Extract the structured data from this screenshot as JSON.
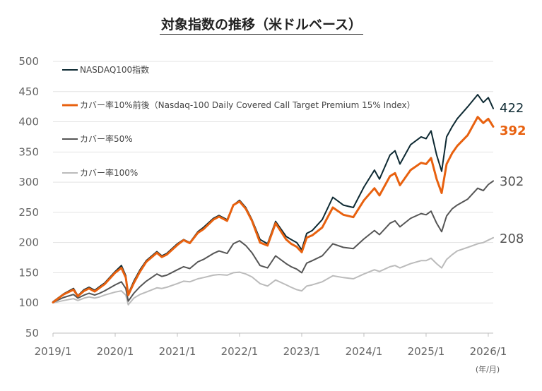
{
  "chart_data": {
    "type": "line",
    "title": "対象指数の推移（米ドルベース）",
    "unit_label": "(年/月)",
    "ylim": [
      50,
      500
    ],
    "yticks": [
      50,
      100,
      150,
      200,
      250,
      300,
      350,
      400,
      450,
      500
    ],
    "xlim": [
      2019.0,
      2026.08
    ],
    "xticks": [
      {
        "value": 2019,
        "label": "2019/1"
      },
      {
        "value": 2020,
        "label": "2020/1"
      },
      {
        "value": 2021,
        "label": "2021/1"
      },
      {
        "value": 2022,
        "label": "2022/1"
      },
      {
        "value": 2023,
        "label": "2023/1"
      },
      {
        "value": 2024,
        "label": "2024/1"
      },
      {
        "value": 2025,
        "label": "2025/1"
      },
      {
        "value": 2026,
        "label": "2026/1"
      }
    ],
    "grid": true,
    "legend_position": "top-left",
    "series": [
      {
        "name": "NASDAQ100指数",
        "color": "#0e2a33",
        "end_label": "422",
        "end_label_bold": false,
        "x": [
          2019.0,
          2019.17,
          2019.33,
          2019.4,
          2019.5,
          2019.58,
          2019.67,
          2019.75,
          2019.83,
          2020.0,
          2020.1,
          2020.17,
          2020.21,
          2020.3,
          2020.4,
          2020.5,
          2020.67,
          2020.75,
          2020.83,
          2021.0,
          2021.1,
          2021.2,
          2021.33,
          2021.42,
          2021.58,
          2021.67,
          2021.8,
          2021.9,
          2022.0,
          2022.1,
          2022.2,
          2022.33,
          2022.45,
          2022.58,
          2022.75,
          2022.83,
          2022.92,
          2023.0,
          2023.08,
          2023.17,
          2023.33,
          2023.5,
          2023.67,
          2023.83,
          2024.0,
          2024.17,
          2024.25,
          2024.42,
          2024.5,
          2024.58,
          2024.75,
          2024.92,
          2025.0,
          2025.08,
          2025.17,
          2025.25,
          2025.33,
          2025.42,
          2025.5,
          2025.67,
          2025.83,
          2025.92,
          2026.0,
          2026.08
        ],
        "y": [
          102,
          115,
          124,
          112,
          122,
          126,
          121,
          127,
          133,
          152,
          162,
          145,
          115,
          136,
          155,
          170,
          185,
          178,
          182,
          198,
          205,
          200,
          218,
          225,
          240,
          245,
          238,
          262,
          270,
          258,
          238,
          205,
          198,
          235,
          210,
          205,
          200,
          188,
          215,
          220,
          238,
          275,
          262,
          258,
          292,
          320,
          305,
          345,
          352,
          330,
          362,
          375,
          372,
          385,
          345,
          318,
          375,
          392,
          405,
          425,
          445,
          432,
          440,
          422
        ]
      },
      {
        "name": "カバー率10%前後（Nasdaq-100 Daily Covered Call Target Premium 15% Index）",
        "color": "#e8610f",
        "end_label": "392",
        "end_label_bold": true,
        "x": [
          2019.0,
          2019.17,
          2019.33,
          2019.4,
          2019.5,
          2019.58,
          2019.67,
          2019.75,
          2019.83,
          2020.0,
          2020.1,
          2020.17,
          2020.21,
          2020.3,
          2020.4,
          2020.5,
          2020.67,
          2020.75,
          2020.83,
          2021.0,
          2021.1,
          2021.2,
          2021.33,
          2021.42,
          2021.58,
          2021.67,
          2021.8,
          2021.9,
          2022.0,
          2022.1,
          2022.2,
          2022.33,
          2022.45,
          2022.58,
          2022.75,
          2022.83,
          2022.92,
          2023.0,
          2023.08,
          2023.17,
          2023.33,
          2023.5,
          2023.67,
          2023.83,
          2024.0,
          2024.17,
          2024.25,
          2024.42,
          2024.5,
          2024.58,
          2024.75,
          2024.92,
          2025.0,
          2025.08,
          2025.17,
          2025.25,
          2025.33,
          2025.42,
          2025.5,
          2025.67,
          2025.83,
          2025.92,
          2026.0,
          2026.08
        ],
        "y": [
          101,
          114,
          122,
          111,
          120,
          124,
          119,
          125,
          131,
          150,
          158,
          142,
          113,
          133,
          152,
          168,
          183,
          176,
          180,
          196,
          204,
          199,
          216,
          222,
          238,
          243,
          236,
          262,
          268,
          256,
          236,
          200,
          195,
          232,
          205,
          198,
          193,
          184,
          208,
          212,
          225,
          258,
          246,
          242,
          270,
          290,
          278,
          310,
          315,
          295,
          320,
          332,
          330,
          340,
          305,
          282,
          330,
          348,
          360,
          378,
          408,
          398,
          405,
          392
        ]
      },
      {
        "name": "カバー率50%",
        "color": "#555555",
        "end_label": "302",
        "end_label_bold": false,
        "x": [
          2019.0,
          2019.17,
          2019.33,
          2019.4,
          2019.5,
          2019.58,
          2019.67,
          2019.75,
          2019.83,
          2020.0,
          2020.1,
          2020.17,
          2020.21,
          2020.3,
          2020.4,
          2020.5,
          2020.67,
          2020.75,
          2020.83,
          2021.0,
          2021.1,
          2021.2,
          2021.33,
          2021.42,
          2021.58,
          2021.67,
          2021.8,
          2021.9,
          2022.0,
          2022.1,
          2022.2,
          2022.33,
          2022.45,
          2022.58,
          2022.75,
          2022.83,
          2022.92,
          2023.0,
          2023.08,
          2023.17,
          2023.33,
          2023.5,
          2023.67,
          2023.83,
          2024.0,
          2024.17,
          2024.25,
          2024.42,
          2024.5,
          2024.58,
          2024.75,
          2024.92,
          2025.0,
          2025.08,
          2025.17,
          2025.25,
          2025.33,
          2025.42,
          2025.5,
          2025.67,
          2025.83,
          2025.92,
          2026.0,
          2026.08
        ],
        "y": [
          101,
          109,
          114,
          108,
          113,
          116,
          113,
          116,
          120,
          130,
          135,
          124,
          103,
          116,
          127,
          136,
          148,
          144,
          146,
          155,
          160,
          157,
          168,
          172,
          182,
          186,
          182,
          198,
          203,
          195,
          183,
          162,
          158,
          178,
          165,
          160,
          156,
          150,
          166,
          170,
          178,
          198,
          192,
          190,
          206,
          220,
          213,
          232,
          236,
          226,
          240,
          248,
          246,
          252,
          232,
          218,
          244,
          256,
          262,
          272,
          290,
          286,
          296,
          302
        ]
      },
      {
        "name": "カバー率100%",
        "color": "#bbbbbb",
        "end_label": "208",
        "end_label_bold": false,
        "x": [
          2019.0,
          2019.17,
          2019.33,
          2019.4,
          2019.5,
          2019.58,
          2019.67,
          2019.75,
          2019.83,
          2020.0,
          2020.1,
          2020.17,
          2020.21,
          2020.3,
          2020.4,
          2020.5,
          2020.67,
          2020.75,
          2020.83,
          2021.0,
          2021.1,
          2021.2,
          2021.33,
          2021.42,
          2021.58,
          2021.67,
          2021.8,
          2021.9,
          2022.0,
          2022.1,
          2022.2,
          2022.33,
          2022.45,
          2022.58,
          2022.75,
          2022.83,
          2022.92,
          2023.0,
          2023.08,
          2023.17,
          2023.33,
          2023.5,
          2023.67,
          2023.83,
          2024.0,
          2024.17,
          2024.25,
          2024.42,
          2024.5,
          2024.58,
          2024.75,
          2024.92,
          2025.0,
          2025.08,
          2025.17,
          2025.25,
          2025.33,
          2025.42,
          2025.5,
          2025.67,
          2025.83,
          2025.92,
          2026.0,
          2026.08
        ],
        "y": [
          100,
          104,
          107,
          104,
          108,
          110,
          108,
          110,
          113,
          118,
          120,
          113,
          97,
          108,
          114,
          118,
          125,
          124,
          126,
          132,
          136,
          135,
          140,
          142,
          146,
          147,
          146,
          150,
          151,
          148,
          143,
          132,
          128,
          138,
          130,
          126,
          122,
          120,
          128,
          130,
          135,
          145,
          142,
          140,
          148,
          155,
          152,
          160,
          162,
          158,
          165,
          170,
          170,
          174,
          165,
          158,
          172,
          180,
          186,
          192,
          198,
          200,
          204,
          208
        ]
      }
    ]
  }
}
